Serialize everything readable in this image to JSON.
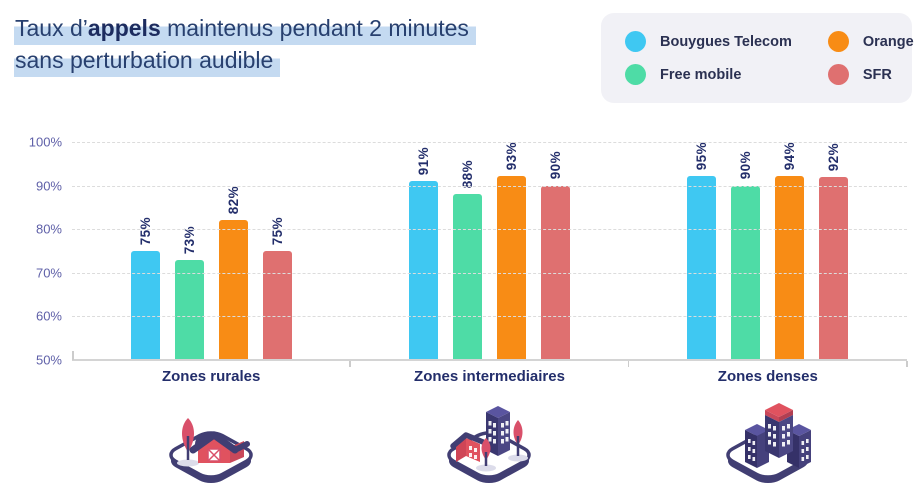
{
  "title": {
    "line1_prefix": "Taux d’",
    "line1_bold": "appels",
    "line1_suffix": " maintenus pendant 2 minutes",
    "line2": "sans perturbation audible"
  },
  "legend": {
    "position": "top-right",
    "items": [
      {
        "label": "Bouygues Telecom",
        "color": "#3fc8f2"
      },
      {
        "label": "Orange",
        "color": "#f88c15"
      },
      {
        "label": "Free mobile",
        "color": "#4edca6"
      },
      {
        "label": "SFR",
        "color": "#df7070"
      }
    ]
  },
  "chart_data": {
    "type": "bar",
    "title": "Taux d'appels maintenus pendant 2 minutes sans perturbation audible",
    "categories": [
      "Zones rurales",
      "Zones intermediaires",
      "Zones denses"
    ],
    "series": [
      {
        "name": "Bouygues Telecom",
        "color": "#3fc8f2",
        "values": [
          75,
          91,
          95
        ]
      },
      {
        "name": "Free mobile",
        "color": "#4edca6",
        "values": [
          73,
          88,
          90
        ]
      },
      {
        "name": "Orange",
        "color": "#f88c15",
        "values": [
          82,
          93,
          94
        ]
      },
      {
        "name": "SFR",
        "color": "#df7070",
        "values": [
          75,
          90,
          92
        ]
      }
    ],
    "value_label_suffix": "%",
    "ylim": [
      50,
      100
    ],
    "yticks": [
      "100%",
      "90%",
      "80%",
      "70%",
      "60%",
      "50%"
    ],
    "grid": "horizontal-dashed",
    "legend_position": "top-right"
  },
  "category_icons": [
    "rural-zone-icon",
    "intermediate-zone-icon",
    "dense-zone-icon"
  ],
  "colors": {
    "title_text": "#28406f",
    "title_highlight": "#c4daf1",
    "axis_label": "#5f60a8",
    "value_label": "#232e6b",
    "legend_background": "#f1f1f6",
    "gridline": "#dcdcdc",
    "icon_navy": "#413e73",
    "icon_red": "#e0525f"
  }
}
